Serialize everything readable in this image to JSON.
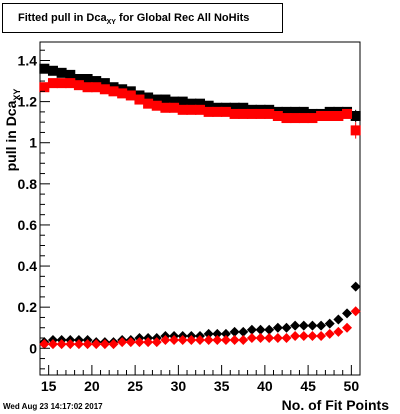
{
  "title": {
    "prefix": "Fitted pull in Dca",
    "subscript": "XY",
    "suffix": " for Global Rec All NoHits"
  },
  "timestamp": "Wed Aug 23 14:17:02 2017",
  "chart_data": {
    "type": "scatter",
    "xlabel": "No. of Fit Points",
    "ylabel": "pull in Dca",
    "ylabel_subscript": "XY",
    "xlim": [
      14,
      51
    ],
    "ylim": [
      -0.13,
      1.49
    ],
    "x_ticks": [
      15,
      20,
      25,
      30,
      35,
      40,
      45,
      50
    ],
    "y_ticks": [
      0,
      0.2,
      0.4,
      0.6,
      0.8,
      1,
      1.2,
      1.4
    ],
    "grid": false,
    "x": [
      14.5,
      15.5,
      16.5,
      17.5,
      18.5,
      19.5,
      20.5,
      21.5,
      22.5,
      23.5,
      24.5,
      25.5,
      26.5,
      27.5,
      28.5,
      29.5,
      30.5,
      31.5,
      32.5,
      33.5,
      34.5,
      35.5,
      36.5,
      37.5,
      38.5,
      39.5,
      40.5,
      41.5,
      42.5,
      43.5,
      44.5,
      45.5,
      46.5,
      47.5,
      48.5,
      49.5,
      50.5
    ],
    "series": [
      {
        "role": "sigma",
        "marker": "square",
        "color": "#000000",
        "values": [
          1.36,
          1.35,
          1.34,
          1.33,
          1.31,
          1.31,
          1.3,
          1.29,
          1.27,
          1.26,
          1.25,
          1.23,
          1.22,
          1.21,
          1.21,
          1.2,
          1.2,
          1.19,
          1.19,
          1.18,
          1.17,
          1.17,
          1.17,
          1.17,
          1.16,
          1.16,
          1.16,
          1.15,
          1.15,
          1.15,
          1.15,
          1.14,
          1.14,
          1.15,
          1.15,
          1.15,
          1.13
        ],
        "err": [
          0.02,
          0.01,
          0.01,
          0.01,
          0.01,
          0.01,
          0.01,
          0.01,
          0.01,
          0.01,
          0.01,
          0.01,
          0.01,
          0.01,
          0.01,
          0.01,
          0.01,
          0.01,
          0.01,
          0.01,
          0.01,
          0.01,
          0.01,
          0.01,
          0.01,
          0.01,
          0.01,
          0.01,
          0.01,
          0.01,
          0.01,
          0.01,
          0.01,
          0.01,
          0.01,
          0.01,
          0.03
        ]
      },
      {
        "role": "sigma",
        "marker": "square",
        "color": "#ff0000",
        "values": [
          1.27,
          1.29,
          1.29,
          1.29,
          1.28,
          1.27,
          1.27,
          1.26,
          1.25,
          1.24,
          1.23,
          1.21,
          1.19,
          1.18,
          1.17,
          1.17,
          1.16,
          1.16,
          1.16,
          1.15,
          1.15,
          1.15,
          1.14,
          1.14,
          1.14,
          1.14,
          1.14,
          1.13,
          1.12,
          1.12,
          1.12,
          1.12,
          1.13,
          1.13,
          1.13,
          1.14,
          1.06
        ],
        "err": [
          0.02,
          0.01,
          0.01,
          0.01,
          0.01,
          0.01,
          0.01,
          0.01,
          0.01,
          0.01,
          0.01,
          0.01,
          0.01,
          0.01,
          0.01,
          0.01,
          0.01,
          0.01,
          0.01,
          0.01,
          0.01,
          0.01,
          0.01,
          0.01,
          0.01,
          0.01,
          0.01,
          0.01,
          0.01,
          0.01,
          0.01,
          0.01,
          0.01,
          0.01,
          0.01,
          0.01,
          0.04
        ]
      },
      {
        "role": "mean",
        "marker": "diamond",
        "color": "#000000",
        "values": [
          0.03,
          0.04,
          0.04,
          0.04,
          0.04,
          0.04,
          0.03,
          0.03,
          0.03,
          0.04,
          0.04,
          0.05,
          0.05,
          0.05,
          0.06,
          0.06,
          0.06,
          0.06,
          0.06,
          0.07,
          0.07,
          0.07,
          0.08,
          0.08,
          0.09,
          0.09,
          0.09,
          0.1,
          0.1,
          0.11,
          0.11,
          0.11,
          0.11,
          0.12,
          0.14,
          0.17,
          0.3
        ],
        "err": [
          0.01,
          0.005,
          0.005,
          0.005,
          0.005,
          0.005,
          0.005,
          0.005,
          0.005,
          0.005,
          0.005,
          0.005,
          0.005,
          0.005,
          0.005,
          0.005,
          0.005,
          0.005,
          0.005,
          0.005,
          0.005,
          0.005,
          0.005,
          0.005,
          0.005,
          0.005,
          0.005,
          0.005,
          0.005,
          0.005,
          0.005,
          0.005,
          0.005,
          0.005,
          0.005,
          0.005,
          0.01
        ]
      },
      {
        "role": "mean",
        "marker": "diamond",
        "color": "#ff0000",
        "values": [
          0.02,
          0.02,
          0.02,
          0.02,
          0.02,
          0.02,
          0.02,
          0.02,
          0.02,
          0.03,
          0.03,
          0.03,
          0.03,
          0.03,
          0.04,
          0.04,
          0.04,
          0.04,
          0.04,
          0.04,
          0.04,
          0.04,
          0.04,
          0.04,
          0.05,
          0.05,
          0.05,
          0.05,
          0.05,
          0.06,
          0.06,
          0.06,
          0.06,
          0.07,
          0.08,
          0.1,
          0.18
        ],
        "err": [
          0.01,
          0.005,
          0.005,
          0.005,
          0.005,
          0.005,
          0.005,
          0.005,
          0.005,
          0.005,
          0.005,
          0.005,
          0.005,
          0.005,
          0.005,
          0.005,
          0.005,
          0.005,
          0.005,
          0.005,
          0.005,
          0.005,
          0.005,
          0.005,
          0.005,
          0.005,
          0.005,
          0.005,
          0.005,
          0.005,
          0.005,
          0.005,
          0.005,
          0.005,
          0.005,
          0.005,
          0.01
        ]
      }
    ]
  }
}
